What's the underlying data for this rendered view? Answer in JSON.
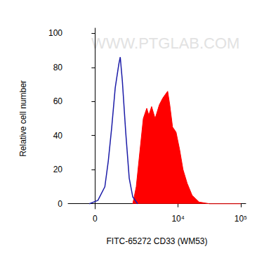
{
  "chart_data": {
    "type": "line",
    "watermark": "WWW.PTGLAB.COM",
    "x_label": "FITC-65272 CD33 (WM53)",
    "y_label": "Relative cell number",
    "xlim": [
      -1100,
      120000
    ],
    "xticks": [
      0,
      {
        "value": 10000,
        "label": "10⁴"
      },
      {
        "value": 100000,
        "label": "10⁵"
      }
    ],
    "ylim": [
      -3,
      103
    ],
    "yticks": [
      0,
      20,
      40,
      60,
      80,
      100
    ],
    "grid": false,
    "series": [
      {
        "type": "area",
        "color": "#ff0000",
        "x": [
          1780,
          2050,
          2360,
          2710,
          3100,
          3350,
          3730,
          4260,
          4980,
          5670,
          6800,
          7350,
          8150,
          9270,
          10550,
          12000,
          13970,
          16720,
          21660,
          31800,
          100000
        ],
        "values": [
          0,
          10,
          30,
          50,
          56,
          52,
          57,
          50,
          58,
          62,
          66,
          58,
          45,
          42,
          32,
          20,
          12,
          5,
          1,
          0,
          0
        ]
      },
      {
        "type": "line",
        "color": "#1c1ca8",
        "x": [
          -200,
          100,
          350,
          480,
          620,
          770,
          940,
          1010,
          1120,
          1310,
          1530,
          1780,
          2170
        ],
        "values": [
          0,
          2,
          10,
          25,
          45,
          68,
          82,
          86,
          72,
          42,
          15,
          4,
          0
        ]
      }
    ]
  }
}
